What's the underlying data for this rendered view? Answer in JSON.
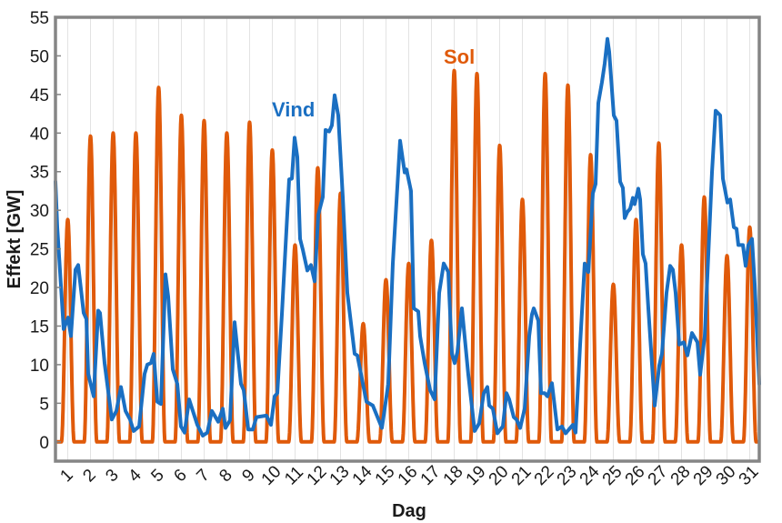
{
  "chart_data": {
    "type": "line",
    "title": "",
    "xlabel": "Dag",
    "ylabel": "Effekt [GW]",
    "xlim": [
      0.46,
      31.42
    ],
    "ylim": [
      -2.5,
      55
    ],
    "xticks": [
      1,
      2,
      3,
      4,
      5,
      6,
      7,
      8,
      9,
      10,
      11,
      12,
      13,
      14,
      15,
      16,
      17,
      18,
      19,
      20,
      21,
      22,
      23,
      24,
      25,
      26,
      27,
      28,
      29,
      30,
      31
    ],
    "xtick_labels": [
      "1",
      "2",
      "3",
      "4",
      "5",
      "6",
      "7",
      "8",
      "9",
      "10",
      "11",
      "12",
      "13",
      "14",
      "15",
      "16",
      "17",
      "18",
      "19",
      "20",
      "21",
      "22",
      "23",
      "24",
      "25",
      "26",
      "27",
      "28",
      "29",
      "30",
      "31"
    ],
    "yticks": [
      0,
      5,
      10,
      15,
      20,
      25,
      30,
      35,
      40,
      45,
      50,
      55
    ],
    "ytick_labels": [
      "0",
      "5",
      "10",
      "15",
      "20",
      "25",
      "30",
      "35",
      "40",
      "45",
      "50",
      "55"
    ],
    "grid": {
      "vertical": true,
      "horizontal": false
    },
    "series": [
      {
        "name": "Sol",
        "color": "#e05a0a",
        "daily_peak_days": [
          1,
          2,
          3,
          4,
          5,
          6,
          7,
          8,
          9,
          10,
          11,
          12,
          13,
          14,
          15,
          16,
          17,
          18,
          19,
          20,
          21,
          22,
          23,
          24,
          25,
          26,
          27,
          28,
          29,
          30,
          31
        ],
        "daily_peak_values": [
          28.8,
          39.6,
          40.0,
          40.0,
          45.9,
          42.3,
          41.6,
          40.0,
          41.4,
          37.8,
          25.5,
          35.5,
          32.2,
          15.3,
          21.0,
          23.1,
          26.1,
          48.1,
          47.7,
          38.4,
          31.4,
          47.7,
          46.2,
          37.2,
          20.4,
          28.8,
          38.7,
          25.5,
          31.7,
          24.1,
          27.8
        ]
      },
      {
        "name": "Vind",
        "color": "#1a6fc2",
        "points": [
          [
            0.46,
            33.7
          ],
          [
            0.54,
            27.8
          ],
          [
            0.82,
            14.6
          ],
          [
            1.02,
            16.1
          ],
          [
            1.14,
            13.7
          ],
          [
            1.34,
            22.3
          ],
          [
            1.46,
            22.9
          ],
          [
            1.7,
            16.7
          ],
          [
            1.82,
            15.9
          ],
          [
            1.9,
            8.8
          ],
          [
            2.14,
            5.9
          ],
          [
            2.34,
            17.0
          ],
          [
            2.42,
            16.7
          ],
          [
            2.62,
            10.2
          ],
          [
            2.94,
            2.9
          ],
          [
            3.14,
            4.0
          ],
          [
            3.34,
            7.1
          ],
          [
            3.54,
            4.0
          ],
          [
            3.74,
            2.9
          ],
          [
            3.9,
            1.4
          ],
          [
            4.14,
            2.0
          ],
          [
            4.38,
            8.8
          ],
          [
            4.5,
            10.0
          ],
          [
            4.66,
            10.2
          ],
          [
            4.78,
            11.4
          ],
          [
            4.94,
            5.2
          ],
          [
            5.1,
            4.9
          ],
          [
            5.3,
            21.7
          ],
          [
            5.42,
            18.8
          ],
          [
            5.62,
            9.4
          ],
          [
            5.82,
            7.5
          ],
          [
            5.98,
            2.0
          ],
          [
            6.14,
            1.2
          ],
          [
            6.34,
            5.5
          ],
          [
            6.7,
            2.2
          ],
          [
            6.94,
            0.8
          ],
          [
            7.14,
            1.2
          ],
          [
            7.34,
            4.0
          ],
          [
            7.62,
            2.6
          ],
          [
            7.82,
            4.3
          ],
          [
            7.94,
            1.8
          ],
          [
            8.14,
            2.8
          ],
          [
            8.34,
            15.5
          ],
          [
            8.62,
            7.5
          ],
          [
            8.74,
            6.7
          ],
          [
            8.94,
            1.6
          ],
          [
            9.14,
            1.6
          ],
          [
            9.3,
            3.2
          ],
          [
            9.74,
            3.4
          ],
          [
            9.94,
            2.2
          ],
          [
            10.1,
            5.9
          ],
          [
            10.22,
            6.3
          ],
          [
            10.42,
            16.5
          ],
          [
            10.74,
            34.0
          ],
          [
            10.86,
            34.1
          ],
          [
            10.98,
            39.4
          ],
          [
            11.1,
            36.9
          ],
          [
            11.22,
            26.3
          ],
          [
            11.34,
            24.9
          ],
          [
            11.54,
            22.2
          ],
          [
            11.7,
            22.9
          ],
          [
            11.86,
            20.8
          ],
          [
            12.02,
            29.4
          ],
          [
            12.22,
            31.7
          ],
          [
            12.34,
            40.4
          ],
          [
            12.5,
            40.2
          ],
          [
            12.62,
            41.0
          ],
          [
            12.74,
            44.9
          ],
          [
            12.9,
            42.3
          ],
          [
            13.1,
            31.7
          ],
          [
            13.3,
            19.3
          ],
          [
            13.62,
            11.4
          ],
          [
            13.74,
            11.2
          ],
          [
            14.14,
            5.2
          ],
          [
            14.42,
            4.7
          ],
          [
            14.82,
            1.8
          ],
          [
            15.1,
            7.5
          ],
          [
            15.3,
            23.1
          ],
          [
            15.62,
            39.0
          ],
          [
            15.82,
            34.9
          ],
          [
            15.9,
            35.3
          ],
          [
            16.1,
            32.5
          ],
          [
            16.22,
            17.3
          ],
          [
            16.42,
            16.9
          ],
          [
            16.5,
            13.7
          ],
          [
            16.7,
            10.2
          ],
          [
            16.94,
            6.7
          ],
          [
            17.14,
            5.5
          ],
          [
            17.34,
            19.3
          ],
          [
            17.54,
            23.1
          ],
          [
            17.74,
            22.0
          ],
          [
            17.9,
            11.4
          ],
          [
            18.02,
            10.2
          ],
          [
            18.14,
            11.6
          ],
          [
            18.34,
            17.3
          ],
          [
            18.62,
            8.7
          ],
          [
            18.9,
            1.4
          ],
          [
            19.1,
            2.4
          ],
          [
            19.3,
            6.3
          ],
          [
            19.46,
            7.1
          ],
          [
            19.54,
            4.7
          ],
          [
            19.7,
            4.3
          ],
          [
            19.9,
            1.1
          ],
          [
            20.14,
            2.0
          ],
          [
            20.3,
            6.3
          ],
          [
            20.42,
            5.5
          ],
          [
            20.62,
            3.2
          ],
          [
            20.74,
            2.9
          ],
          [
            20.9,
            1.8
          ],
          [
            21.1,
            4.3
          ],
          [
            21.3,
            13.7
          ],
          [
            21.42,
            16.5
          ],
          [
            21.5,
            17.3
          ],
          [
            21.7,
            15.7
          ],
          [
            21.82,
            6.3
          ],
          [
            21.98,
            6.3
          ],
          [
            22.1,
            5.9
          ],
          [
            22.3,
            7.6
          ],
          [
            22.54,
            1.6
          ],
          [
            22.74,
            2.0
          ],
          [
            22.9,
            1.1
          ],
          [
            23.22,
            2.2
          ],
          [
            23.34,
            1.2
          ],
          [
            23.54,
            12.6
          ],
          [
            23.74,
            23.1
          ],
          [
            23.9,
            22.0
          ],
          [
            24.1,
            32.2
          ],
          [
            24.22,
            33.4
          ],
          [
            24.34,
            43.9
          ],
          [
            24.5,
            46.6
          ],
          [
            24.62,
            49.0
          ],
          [
            24.74,
            52.2
          ],
          [
            24.82,
            50.5
          ],
          [
            25.02,
            42.3
          ],
          [
            25.14,
            41.6
          ],
          [
            25.3,
            33.7
          ],
          [
            25.42,
            32.9
          ],
          [
            25.5,
            29.0
          ],
          [
            25.62,
            29.8
          ],
          [
            25.74,
            30.2
          ],
          [
            25.86,
            31.6
          ],
          [
            25.94,
            30.8
          ],
          [
            26.1,
            32.8
          ],
          [
            26.18,
            31.4
          ],
          [
            26.3,
            24.3
          ],
          [
            26.42,
            23.1
          ],
          [
            26.54,
            17.3
          ],
          [
            26.82,
            4.7
          ],
          [
            27.02,
            9.9
          ],
          [
            27.14,
            11.4
          ],
          [
            27.34,
            19.3
          ],
          [
            27.5,
            22.8
          ],
          [
            27.62,
            22.3
          ],
          [
            27.74,
            19.3
          ],
          [
            27.9,
            12.6
          ],
          [
            28.1,
            12.9
          ],
          [
            28.26,
            11.2
          ],
          [
            28.46,
            14.1
          ],
          [
            28.7,
            12.9
          ],
          [
            28.82,
            8.7
          ],
          [
            29.02,
            13.7
          ],
          [
            29.14,
            21.6
          ],
          [
            29.34,
            34.9
          ],
          [
            29.5,
            42.9
          ],
          [
            29.7,
            42.3
          ],
          [
            29.82,
            34.1
          ],
          [
            30.02,
            31.0
          ],
          [
            30.14,
            31.4
          ],
          [
            30.3,
            27.8
          ],
          [
            30.42,
            27.6
          ],
          [
            30.5,
            25.5
          ],
          [
            30.7,
            25.5
          ],
          [
            30.82,
            22.8
          ],
          [
            30.94,
            25.5
          ],
          [
            31.1,
            26.3
          ],
          [
            31.22,
            20.4
          ],
          [
            31.42,
            7.5
          ]
        ]
      }
    ],
    "annotations": [
      {
        "text": "Vind",
        "series": "Vind"
      },
      {
        "text": "Sol",
        "series": "Sol"
      }
    ],
    "legend": "none (inline labels)"
  }
}
